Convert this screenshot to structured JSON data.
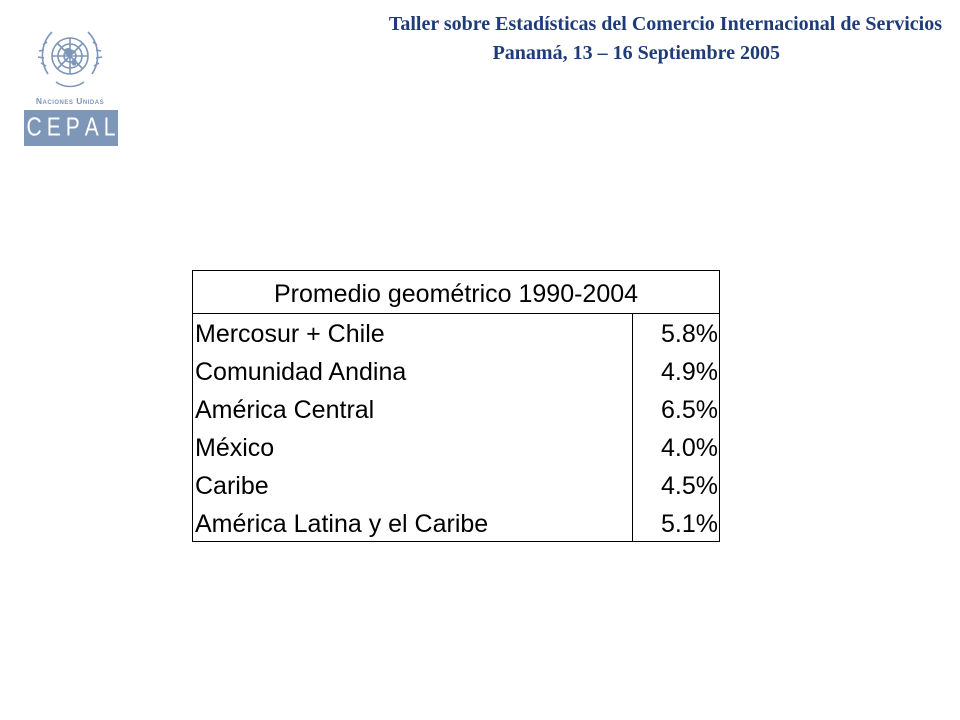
{
  "header": {
    "line1": "Taller sobre Estadísticas del Comercio Internacional de Servicios",
    "line2": "Panamá, 13 – 16 Septiembre 2005"
  },
  "logo": {
    "org_name": "Naciones Unidas",
    "letters": [
      "C",
      "E",
      "P",
      "A",
      "L"
    ],
    "color": "#7e96b8",
    "emblem": "un-emblem-icon"
  },
  "table": {
    "title": "Promedio geométrico 1990-2004",
    "rows": [
      {
        "label": "Mercosur + Chile",
        "value": "5.8%"
      },
      {
        "label": "Comunidad Andina",
        "value": "4.9%"
      },
      {
        "label": "América Central",
        "value": "6.5%"
      },
      {
        "label": "México",
        "value": "4.0%"
      },
      {
        "label": "Caribe",
        "value": "4.5%"
      },
      {
        "label": "América Latina y el Caribe",
        "value": "5.1%"
      }
    ]
  },
  "colors": {
    "header_text": "#1f3c78",
    "table_text": "#000000"
  }
}
